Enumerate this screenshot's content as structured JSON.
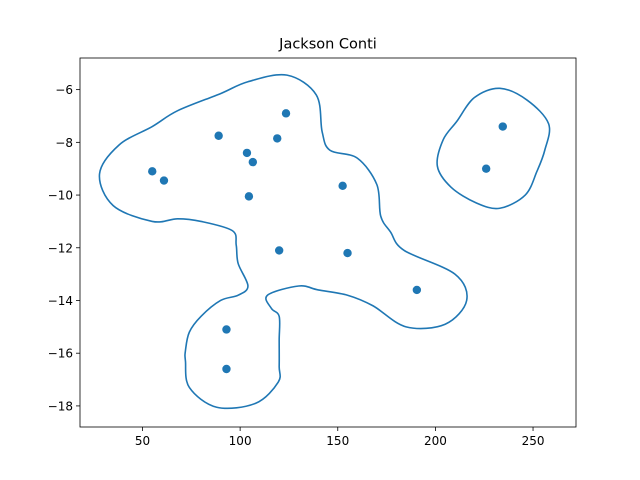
{
  "chart_data": {
    "type": "scatter",
    "title": "Jackson Conti",
    "xlabel": "",
    "ylabel": "",
    "xlim": [
      18,
      272
    ],
    "ylim": [
      -18.8,
      -4.8
    ],
    "xticks": [
      50,
      100,
      150,
      200,
      250
    ],
    "yticks": [
      -6,
      -8,
      -10,
      -12,
      -14,
      -16,
      -18
    ],
    "xtick_labels": [
      "50",
      "100",
      "150",
      "200",
      "250"
    ],
    "ytick_labels": [
      "−6",
      "−8",
      "−10",
      "−12",
      "−14",
      "−16",
      "−18"
    ],
    "grid": false,
    "series_color": "#1f77b4",
    "points": [
      {
        "x": 55,
        "y": -9.1
      },
      {
        "x": 61,
        "y": -9.45
      },
      {
        "x": 89,
        "y": -7.75
      },
      {
        "x": 103.5,
        "y": -8.4
      },
      {
        "x": 106.5,
        "y": -8.75
      },
      {
        "x": 104.5,
        "y": -10.05
      },
      {
        "x": 119,
        "y": -7.85
      },
      {
        "x": 123.5,
        "y": -6.9
      },
      {
        "x": 152.5,
        "y": -9.65
      },
      {
        "x": 120,
        "y": -12.1
      },
      {
        "x": 155,
        "y": -12.2
      },
      {
        "x": 190.5,
        "y": -13.6
      },
      {
        "x": 93,
        "y": -15.1
      },
      {
        "x": 93,
        "y": -16.6
      },
      {
        "x": 226,
        "y": -9
      },
      {
        "x": 234.5,
        "y": -7.4
      }
    ],
    "contours": [
      [
        [
          38,
          -8.1
        ],
        [
          55,
          -7.4
        ],
        [
          68,
          -6.8
        ],
        [
          90,
          -6.15
        ],
        [
          104,
          -5.7
        ],
        [
          124,
          -5.45
        ],
        [
          139,
          -6.2
        ],
        [
          142,
          -7.6
        ],
        [
          146,
          -8.3
        ],
        [
          160,
          -8.6
        ],
        [
          170,
          -9.6
        ],
        [
          172,
          -10.8
        ],
        [
          177,
          -11.4
        ],
        [
          184,
          -12.1
        ],
        [
          210,
          -13
        ],
        [
          216,
          -14
        ],
        [
          205,
          -14.9
        ],
        [
          185,
          -15
        ],
        [
          168,
          -14.2
        ],
        [
          155,
          -13.8
        ],
        [
          140,
          -13.6
        ],
        [
          130,
          -13.45
        ],
        [
          114,
          -13.8
        ],
        [
          116,
          -14.3
        ],
        [
          120,
          -14.6
        ],
        [
          120,
          -15.5
        ],
        [
          120,
          -16.5
        ],
        [
          119.5,
          -17.1
        ],
        [
          108,
          -17.9
        ],
        [
          88,
          -18.05
        ],
        [
          74,
          -17.3
        ],
        [
          72,
          -16.3
        ],
        [
          72,
          -15.9
        ],
        [
          74,
          -15.2
        ],
        [
          80,
          -14.6
        ],
        [
          90,
          -14
        ],
        [
          99,
          -13.8
        ],
        [
          104,
          -13.45
        ],
        [
          99,
          -12.6
        ],
        [
          98,
          -11.9
        ],
        [
          96,
          -11.35
        ],
        [
          80,
          -11
        ],
        [
          68,
          -10.9
        ],
        [
          55,
          -11
        ],
        [
          35,
          -10.4
        ],
        [
          28,
          -9.2
        ]
      ],
      [
        [
          233,
          -5.95
        ],
        [
          247,
          -6.4
        ],
        [
          258,
          -7.3
        ],
        [
          256,
          -8.3
        ],
        [
          252,
          -9.1
        ],
        [
          246,
          -10
        ],
        [
          233,
          -10.5
        ],
        [
          221,
          -10.3
        ],
        [
          208,
          -9.7
        ],
        [
          201,
          -8.9
        ],
        [
          204,
          -7.9
        ],
        [
          211,
          -7.2
        ],
        [
          220,
          -6.3
        ]
      ]
    ]
  }
}
